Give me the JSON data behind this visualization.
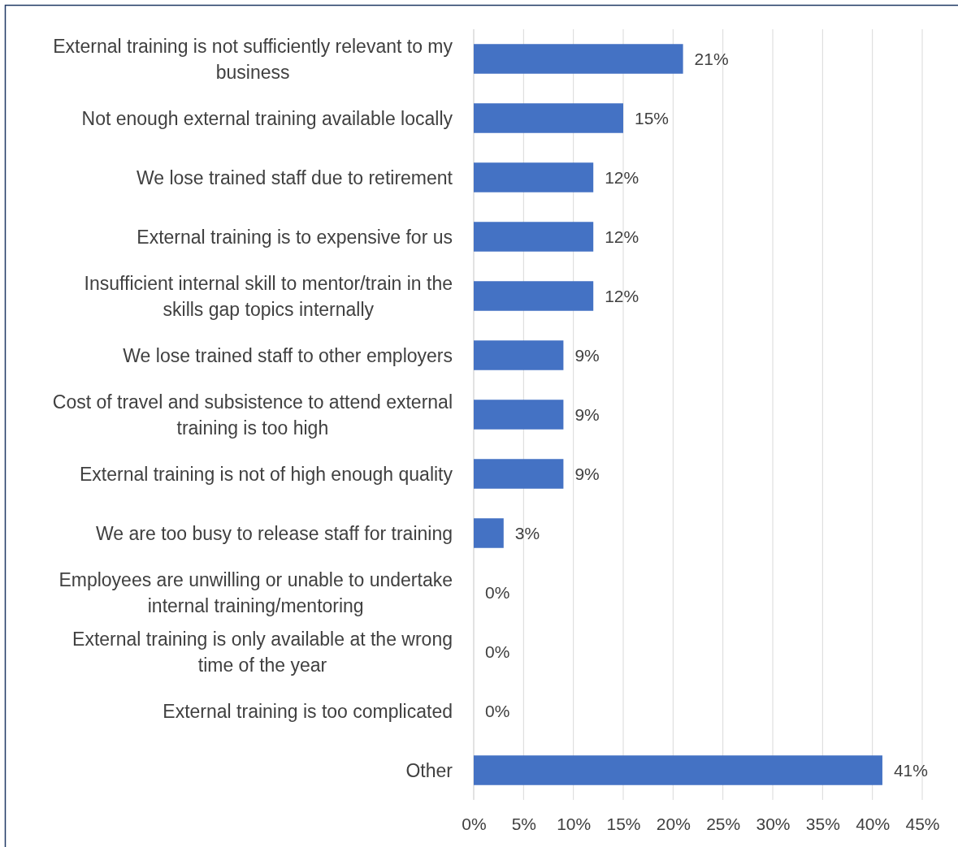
{
  "chart_data": {
    "type": "bar",
    "orientation": "horizontal",
    "categories": [
      "External training is not sufficiently relevant to my business",
      "Not enough external training available locally",
      "We lose trained staff due to retirement",
      "External training is to expensive for us",
      "Insufficient internal skill to mentor/train in the skills gap topics internally",
      "We lose trained staff to other employers",
      "Cost of travel and subsistence to attend external training is too high",
      "External training is not of high enough quality",
      "We are too busy to release staff for training",
      "Employees are unwilling or unable to undertake internal training/mentoring",
      "External training is only available at the wrong time of the year",
      "External training is too complicated",
      "Other"
    ],
    "values": [
      21,
      15,
      12,
      12,
      12,
      9,
      9,
      9,
      3,
      0,
      0,
      0,
      41
    ],
    "value_labels": [
      "21%",
      "15%",
      "12%",
      "12%",
      "12%",
      "9%",
      "9%",
      "9%",
      "3%",
      "0%",
      "0%",
      "0%",
      "41%"
    ],
    "color": "#4472c4",
    "xlim": [
      0,
      45
    ],
    "xticks": [
      {
        "value": 0,
        "label": "0%"
      },
      {
        "value": 5,
        "label": "5%"
      },
      {
        "value": 10,
        "label": "10%"
      },
      {
        "value": 15,
        "label": "15%"
      },
      {
        "value": 20,
        "label": "20%"
      },
      {
        "value": 25,
        "label": "25%"
      },
      {
        "value": 30,
        "label": "30%"
      },
      {
        "value": 35,
        "label": "35%"
      },
      {
        "value": 40,
        "label": "40%"
      },
      {
        "value": 45,
        "label": "45%"
      }
    ],
    "grid": "x"
  }
}
